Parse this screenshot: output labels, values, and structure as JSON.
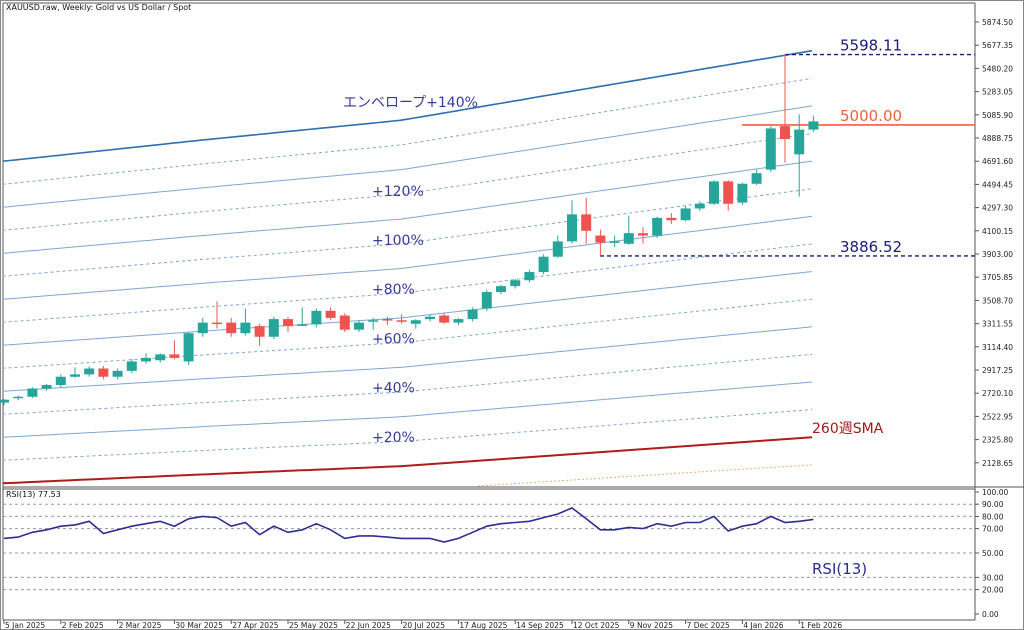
{
  "chart_data": {
    "type": "candlestick",
    "title": "XAUUSD.raw, Weekly:  Gold vs US Dollar / Spot",
    "price_ticks": [
      "5874.50",
      "5677.35",
      "5480.20",
      "5283.05",
      "5085.90",
      "4888.75",
      "4691.60",
      "4494.45",
      "4297.30",
      "4100.15",
      "3903.00",
      "3705.85",
      "3508.70",
      "3311.55",
      "3114.40",
      "2917.25",
      "2720.10",
      "2522.95",
      "2325.80",
      "2128.65"
    ],
    "ylim": [
      1940,
      6010
    ],
    "date_labels": [
      "5 Jan 2025",
      "2 Feb 2025",
      "2 Mar 2025",
      "30 Mar 2025",
      "27 Apr 2025",
      "25 May 2025",
      "22 Jun 2025",
      "20 Jul 2025",
      "17 Aug 2025",
      "14 Sep 2025",
      "12 Oct 2025",
      "9 Nov 2025",
      "7 Dec 2025",
      "4 Jan 2026",
      "1 Feb 2026"
    ],
    "candles": [
      [
        2640,
        2670,
        2620,
        2665
      ],
      [
        2680,
        2700,
        2660,
        2690
      ],
      [
        2690,
        2770,
        2680,
        2760
      ],
      [
        2760,
        2800,
        2740,
        2790
      ],
      [
        2790,
        2880,
        2770,
        2860
      ],
      [
        2860,
        2940,
        2850,
        2880
      ],
      [
        2880,
        2950,
        2860,
        2930
      ],
      [
        2930,
        2950,
        2840,
        2860
      ],
      [
        2860,
        2930,
        2840,
        2910
      ],
      [
        2910,
        3010,
        2890,
        2990
      ],
      [
        2990,
        3060,
        2970,
        3020
      ],
      [
        3000,
        3060,
        2980,
        3050
      ],
      [
        3050,
        3170,
        3010,
        3020
      ],
      [
        2990,
        3240,
        2960,
        3230
      ],
      [
        3230,
        3360,
        3200,
        3320
      ],
      [
        3320,
        3500,
        3270,
        3310
      ],
      [
        3320,
        3360,
        3200,
        3230
      ],
      [
        3230,
        3440,
        3210,
        3320
      ],
      [
        3290,
        3310,
        3120,
        3200
      ],
      [
        3200,
        3370,
        3180,
        3350
      ],
      [
        3350,
        3370,
        3240,
        3290
      ],
      [
        3300,
        3450,
        3290,
        3305
      ],
      [
        3305,
        3440,
        3280,
        3420
      ],
      [
        3420,
        3450,
        3340,
        3360
      ],
      [
        3380,
        3400,
        3240,
        3260
      ],
      [
        3260,
        3340,
        3240,
        3320
      ],
      [
        3330,
        3360,
        3260,
        3340
      ],
      [
        3350,
        3370,
        3300,
        3340
      ],
      [
        3340,
        3390,
        3310,
        3330
      ],
      [
        3310,
        3350,
        3270,
        3340
      ],
      [
        3350,
        3390,
        3330,
        3370
      ],
      [
        3380,
        3400,
        3310,
        3320
      ],
      [
        3320,
        3360,
        3300,
        3350
      ],
      [
        3350,
        3450,
        3330,
        3430
      ],
      [
        3440,
        3600,
        3420,
        3580
      ],
      [
        3580,
        3640,
        3560,
        3630
      ],
      [
        3630,
        3690,
        3610,
        3680
      ],
      [
        3680,
        3770,
        3660,
        3750
      ],
      [
        3750,
        3900,
        3730,
        3880
      ],
      [
        3880,
        4060,
        3870,
        4010
      ],
      [
        4010,
        4360,
        3990,
        4240
      ],
      [
        4240,
        4380,
        3990,
        4100
      ],
      [
        4060,
        4110,
        3886.52,
        4000
      ],
      [
        4000,
        4060,
        3960,
        4010
      ],
      [
        3990,
        4230,
        3980,
        4080
      ],
      [
        4080,
        4130,
        3990,
        4060
      ],
      [
        4060,
        4220,
        4040,
        4210
      ],
      [
        4210,
        4250,
        4160,
        4190
      ],
      [
        4190,
        4310,
        4180,
        4290
      ],
      [
        4290,
        4350,
        4270,
        4330
      ],
      [
        4330,
        4530,
        4320,
        4520
      ],
      [
        4520,
        4530,
        4270,
        4330
      ],
      [
        4340,
        4510,
        4320,
        4500
      ],
      [
        4500,
        4620,
        4490,
        4590
      ],
      [
        4620,
        4990,
        4600,
        4970
      ],
      [
        4990,
        5598.11,
        4680,
        4880
      ],
      [
        4750,
        5090,
        4390,
        4960
      ],
      [
        4960,
        5080,
        4940,
        5030
      ]
    ],
    "sma260": {
      "label": "260週SMA",
      "points": [
        [
          0,
          1955
        ],
        [
          14,
          2030
        ],
        [
          28,
          2100
        ],
        [
          42,
          2220
        ],
        [
          57,
          2347
        ]
      ]
    },
    "envelope": {
      "solid_pct": [
        20,
        40,
        60,
        80,
        100,
        120
      ],
      "dashed_pct": [
        10,
        30,
        50,
        70,
        90,
        110,
        130
      ],
      "lower_pct": [
        -10
      ],
      "top_pct": 140,
      "labels": [
        {
          "pct": 140,
          "text": "エンベロープ+140%"
        },
        {
          "pct": 120,
          "text": "+120%"
        },
        {
          "pct": 100,
          "text": "+100%"
        },
        {
          "pct": 80,
          "text": "+80%"
        },
        {
          "pct": 60,
          "text": "+60%"
        },
        {
          "pct": 40,
          "text": "+40%"
        },
        {
          "pct": 20,
          "text": "+20%"
        }
      ]
    },
    "levels": [
      {
        "value": 5598.11,
        "text": "5598.11",
        "color": "#1a1a7a",
        "style": "dashed"
      },
      {
        "value": 5000.0,
        "text": "5000.00",
        "color": "#f0603a",
        "style": "solid"
      },
      {
        "value": 3886.52,
        "text": "3886.52",
        "color": "#1a1a7a",
        "style": "dashed"
      }
    ],
    "rsi": {
      "header": "RSI(13) 77.53",
      "label": "RSI(13)",
      "period": 13,
      "last": 77.53,
      "ticks": [
        "100.00",
        "90.00",
        "80.00",
        "70.00",
        "50.00",
        "30.00",
        "20.00",
        "0.00"
      ],
      "tick_values": [
        100,
        90,
        80,
        70,
        50,
        30,
        20,
        0
      ],
      "levels": [
        90,
        80,
        70,
        50,
        30,
        20
      ],
      "values": [
        62,
        63,
        67,
        69,
        72,
        73,
        76,
        66,
        69,
        72,
        74,
        76,
        72,
        78,
        80,
        79,
        72,
        75,
        65,
        72,
        67,
        69,
        74,
        69,
        62,
        64,
        64,
        63,
        62,
        62,
        62,
        59,
        62,
        67,
        72,
        74,
        75,
        76,
        79,
        82,
        87,
        78,
        69,
        69,
        71,
        70,
        74,
        72,
        75,
        75,
        80,
        68,
        72,
        74,
        80,
        75,
        76,
        77.53
      ]
    },
    "colors": {
      "up": "#26a69a",
      "down": "#ef5350",
      "envelope": "#7fa6cf",
      "top": "#2f6fb0",
      "sma": "#b01c1c",
      "lower": "#f0b070",
      "rsi": "#2d2d8f",
      "label": "#3a3a9a"
    }
  }
}
